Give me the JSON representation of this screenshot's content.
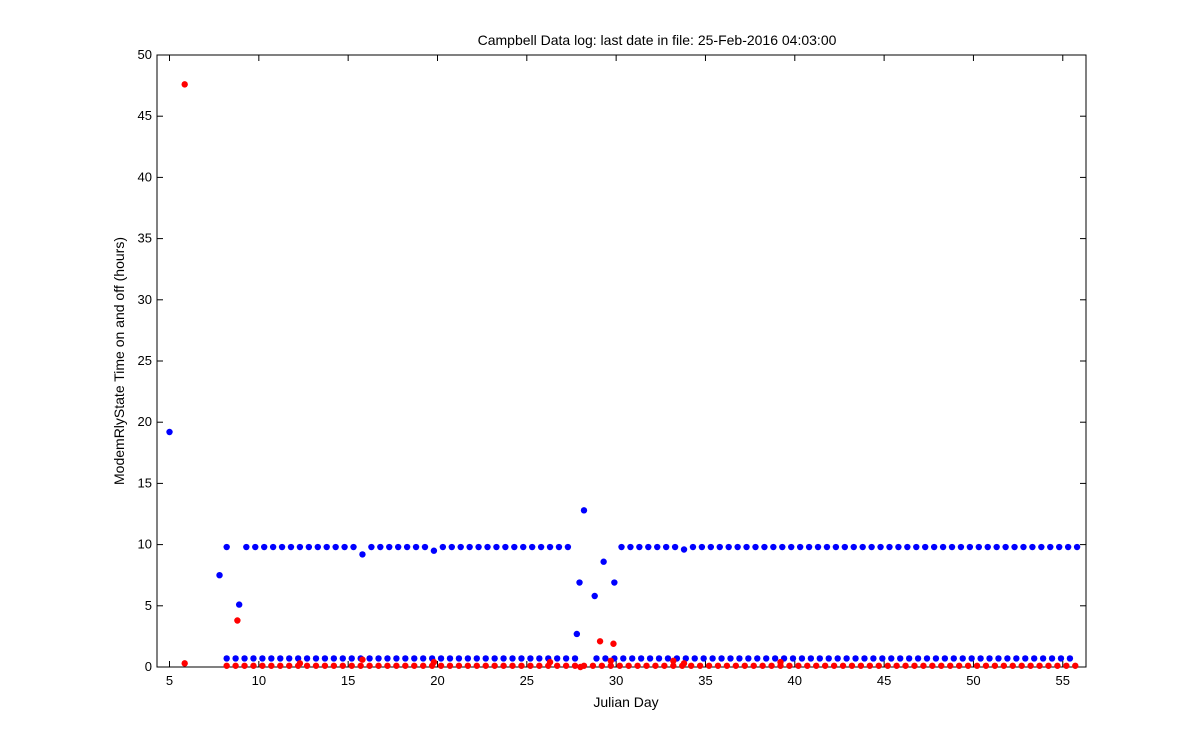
{
  "chart_data": {
    "type": "scatter",
    "title": "Campbell Data log: last date in file: 25-Feb-2016 04:03:00",
    "xlabel": "Julian Day",
    "ylabel": "ModemRlyState Time on and off (hours)",
    "xlim": [
      4.3,
      56.3
    ],
    "ylim": [
      0,
      50
    ],
    "xticks": [
      5,
      10,
      15,
      20,
      25,
      30,
      35,
      40,
      45,
      50,
      55
    ],
    "yticks": [
      0,
      5,
      10,
      15,
      20,
      25,
      30,
      35,
      40,
      45,
      50
    ],
    "grid": false,
    "legend": "none",
    "series": [
      {
        "color": "#0000ff",
        "points": [
          [
            5,
            19.2
          ],
          [
            7.8,
            7.5
          ],
          [
            8.2,
            9.8
          ],
          [
            8.9,
            5.1
          ],
          [
            15.8,
            9.2
          ],
          [
            19.8,
            9.5
          ],
          [
            27.8,
            2.7
          ],
          [
            27.95,
            6.9
          ],
          [
            28.2,
            12.8
          ],
          [
            28.8,
            5.8
          ],
          [
            29.3,
            8.6
          ],
          [
            29.9,
            6.9
          ],
          [
            33.8,
            9.6
          ]
        ],
        "groups": [
          {
            "y": 9.8,
            "x_start": 9.3,
            "x_end": 27.3,
            "step": 0.5,
            "skip": [
              [
                15.6,
                16.1
              ],
              [
                19.6,
                20.1
              ]
            ]
          },
          {
            "y": 9.8,
            "x_start": 30.3,
            "x_end": 55.8,
            "step": 0.5,
            "skip": [
              [
                33.6,
                34.0
              ]
            ]
          },
          {
            "y": 0.7,
            "x_start": 8.2,
            "x_end": 27.7,
            "step": 0.5,
            "skip": []
          },
          {
            "y": 0.7,
            "x_start": 28.9,
            "x_end": 55.8,
            "step": 0.5,
            "skip": []
          }
        ]
      },
      {
        "color": "#ff0000",
        "points": [
          [
            5.85,
            47.6
          ],
          [
            5.85,
            0.3
          ],
          [
            8.8,
            3.8
          ],
          [
            29.1,
            2.1
          ],
          [
            29.85,
            1.9
          ],
          [
            15.8,
            0.6
          ],
          [
            19.8,
            0.4
          ],
          [
            26.3,
            0.4
          ],
          [
            29.7,
            0.5
          ],
          [
            33.2,
            0.5
          ],
          [
            33.8,
            0.3
          ],
          [
            39.2,
            0.4
          ],
          [
            12.3,
            0.3
          ],
          [
            28.0,
            0.0
          ]
        ],
        "groups": [
          {
            "y": 0.1,
            "x_start": 8.2,
            "x_end": 55.8,
            "step": 0.5,
            "skip": []
          }
        ]
      }
    ]
  }
}
